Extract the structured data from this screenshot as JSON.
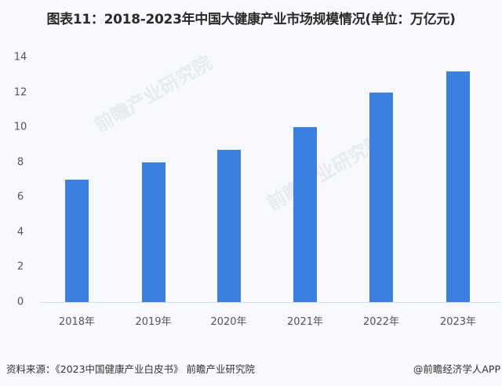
{
  "title": "图表11：2018-2023年中国大健康产业市场规模情况(单位：万亿元)",
  "footer": {
    "source": "资料来源：《2023中国健康产业白皮书》 前瞻产业研究院",
    "credit": "@前瞻经济学人APP"
  },
  "watermark": "前瞻产业研究院",
  "colors": {
    "bar": "#3b7fdf",
    "background": "#f8f9fc"
  },
  "chart_data": {
    "type": "bar",
    "title": "图表11：2018-2023年中国大健康产业市场规模情况(单位：万亿元)",
    "categories": [
      "2018年",
      "2019年",
      "2020年",
      "2021年",
      "2022年",
      "2023年"
    ],
    "values": [
      7,
      8,
      8.7,
      10,
      12,
      13.2
    ],
    "xlabel": "",
    "ylabel": "万亿元",
    "ylim": [
      0,
      14
    ],
    "yticks": [
      0,
      2,
      4,
      6,
      8,
      10,
      12,
      14
    ],
    "grid": false,
    "legend": null
  }
}
